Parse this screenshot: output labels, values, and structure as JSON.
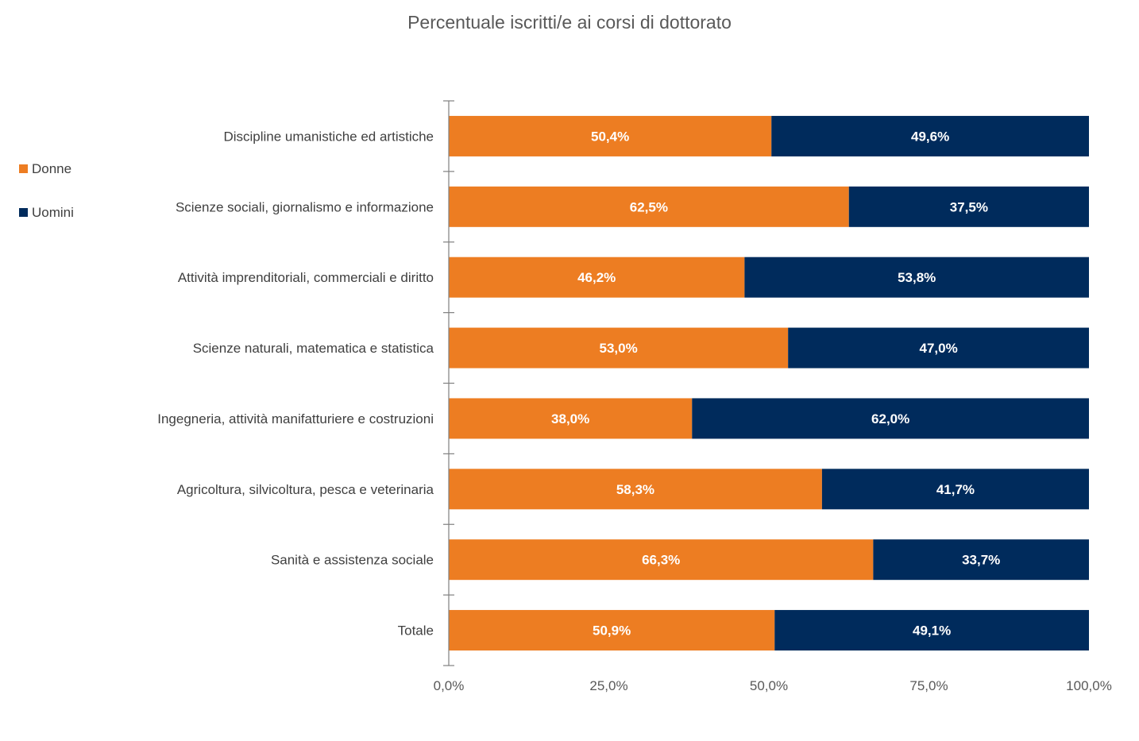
{
  "chart_data": {
    "type": "bar",
    "orientation": "horizontal",
    "stacked": true,
    "title": "Percentuale iscritti/e ai corsi di dottorato",
    "xlabel": "",
    "ylabel": "",
    "xlim": [
      0,
      100
    ],
    "x_ticks": [
      "0,0%",
      "25,0%",
      "50,0%",
      "75,0%",
      "100,0%"
    ],
    "grid": false,
    "legend_position": "left",
    "categories": [
      "Discipline umanistiche ed artistiche",
      "Scienze sociali, giornalismo e informazione",
      "Attività imprenditoriali, commerciali e diritto",
      "Scienze naturali, matematica e statistica",
      "Ingegneria, attività manifatturiere e costruzioni",
      "Agricoltura, silvicoltura, pesca e veterinaria",
      "Sanità e assistenza sociale",
      "Totale"
    ],
    "series": [
      {
        "name": "Donne",
        "color": "#ED7D22",
        "values": [
          50.4,
          62.5,
          46.2,
          53.0,
          38.0,
          58.3,
          66.3,
          50.9
        ],
        "labels": [
          "50,4%",
          "62,5%",
          "46,2%",
          "53,0%",
          "38,0%",
          "58,3%",
          "66,3%",
          "50,9%"
        ]
      },
      {
        "name": "Uomini",
        "color": "#002B5C",
        "values": [
          49.6,
          37.5,
          53.8,
          47.0,
          62.0,
          41.7,
          33.7,
          49.1
        ],
        "labels": [
          "49,6%",
          "37,5%",
          "53,8%",
          "47,0%",
          "62,0%",
          "41,7%",
          "33,7%",
          "49,1%"
        ]
      }
    ]
  }
}
